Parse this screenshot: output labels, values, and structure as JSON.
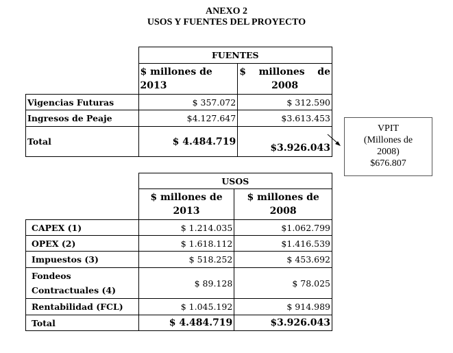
{
  "title": [
    "ANEXO 2",
    "USOS Y FUENTES DEL PROYECTO"
  ],
  "fuentes": {
    "header": "FUENTES",
    "col1": "$ millones de 2013",
    "col2_a": "$ millones de",
    "col2_b": "2008",
    "rows": [
      {
        "label": "Vigencias Futuras",
        "v2013": "$ 357.072",
        "v2008": "$ 312.590"
      },
      {
        "label": "Ingresos de Peaje",
        "v2013": "$4.127.647",
        "v2008": "$3.613.453"
      },
      {
        "label": "Total",
        "v2013": "$ 4.484.719",
        "v2008": "$3.926.043"
      }
    ]
  },
  "vpit": {
    "l1": "VPIT",
    "l2": "(Millones de",
    "l3": "2008)",
    "l4": "$676.807"
  },
  "usos": {
    "header": "USOS",
    "col1_a": "$ millones de",
    "col1_b": "2013",
    "col2_a": "$ millones de",
    "col2_b": "2008",
    "rows": [
      {
        "label": "CAPEX (1)",
        "v2013": "$ 1.214.035",
        "v2008": "$1.062.799"
      },
      {
        "label": "OPEX (2)",
        "v2013": "$ 1.618.112",
        "v2008": "$1.416.539"
      },
      {
        "label": "Impuestos (3)",
        "v2013": "$ 518.252",
        "v2008": "$ 453.692"
      },
      {
        "label": "Fondeos Contractuales (4)",
        "v2013": "$ 89.128",
        "v2008": "$ 78.025"
      },
      {
        "label": "Rentabilidad (FCL)",
        "v2013": "$ 1.045.192",
        "v2008": "$ 914.989"
      },
      {
        "label": "Total",
        "v2013": "$ 4.484.719",
        "v2008": "$3.926.043"
      }
    ]
  }
}
